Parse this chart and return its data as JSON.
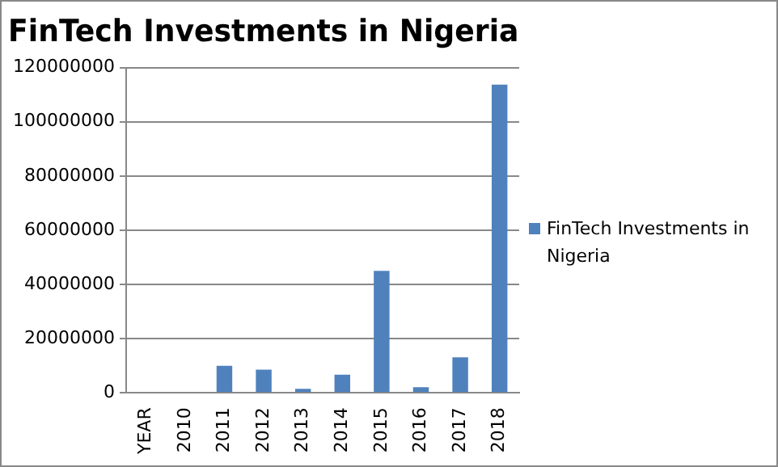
{
  "chart_data": {
    "type": "bar",
    "title": "FinTech Investments in Nigeria",
    "categories": [
      "YEAR",
      "2010",
      "2011",
      "2012",
      "2013",
      "2014",
      "2015",
      "2016",
      "2017",
      "2018"
    ],
    "series": [
      {
        "name": "FinTech Investments in Nigeria",
        "color": "#4f81bd",
        "values": [
          null,
          0,
          10000000,
          8600000,
          1500000,
          6700000,
          45000000,
          2100000,
          13100000,
          113700000
        ]
      }
    ],
    "ylim": [
      0,
      120000000
    ],
    "yticks": [
      0,
      20000000,
      40000000,
      60000000,
      80000000,
      100000000,
      120000000
    ],
    "grid": "y",
    "legend": "right"
  }
}
